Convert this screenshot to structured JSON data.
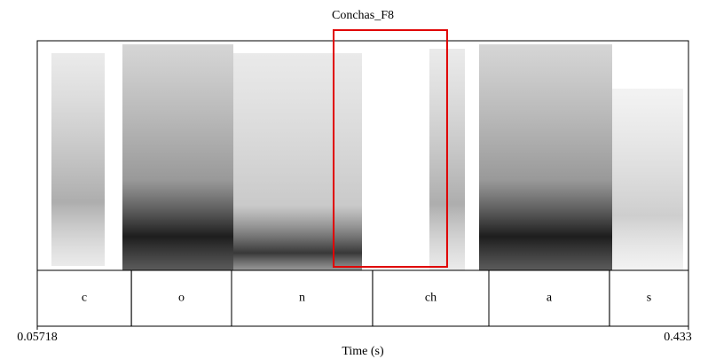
{
  "chart_data": {
    "type": "spectrogram",
    "title": "Conchas_F8",
    "x_label": "Time (s)",
    "xlim": [
      0.05718,
      0.433
    ],
    "xticks": [
      0.05718,
      0.433
    ],
    "intervals": [
      {
        "label": "c",
        "start": 0.05718,
        "end": 0.1115
      },
      {
        "label": "o",
        "start": 0.1115,
        "end": 0.1693
      },
      {
        "label": "n",
        "start": 0.1693,
        "end": 0.2507
      },
      {
        "label": "ch",
        "start": 0.2507,
        "end": 0.3178
      },
      {
        "label": "a",
        "start": 0.3178,
        "end": 0.3874
      },
      {
        "label": "s",
        "start": 0.3874,
        "end": 0.433
      }
    ],
    "highlight": {
      "start": 0.2282,
      "end": 0.2937,
      "color": "#e00000"
    }
  }
}
